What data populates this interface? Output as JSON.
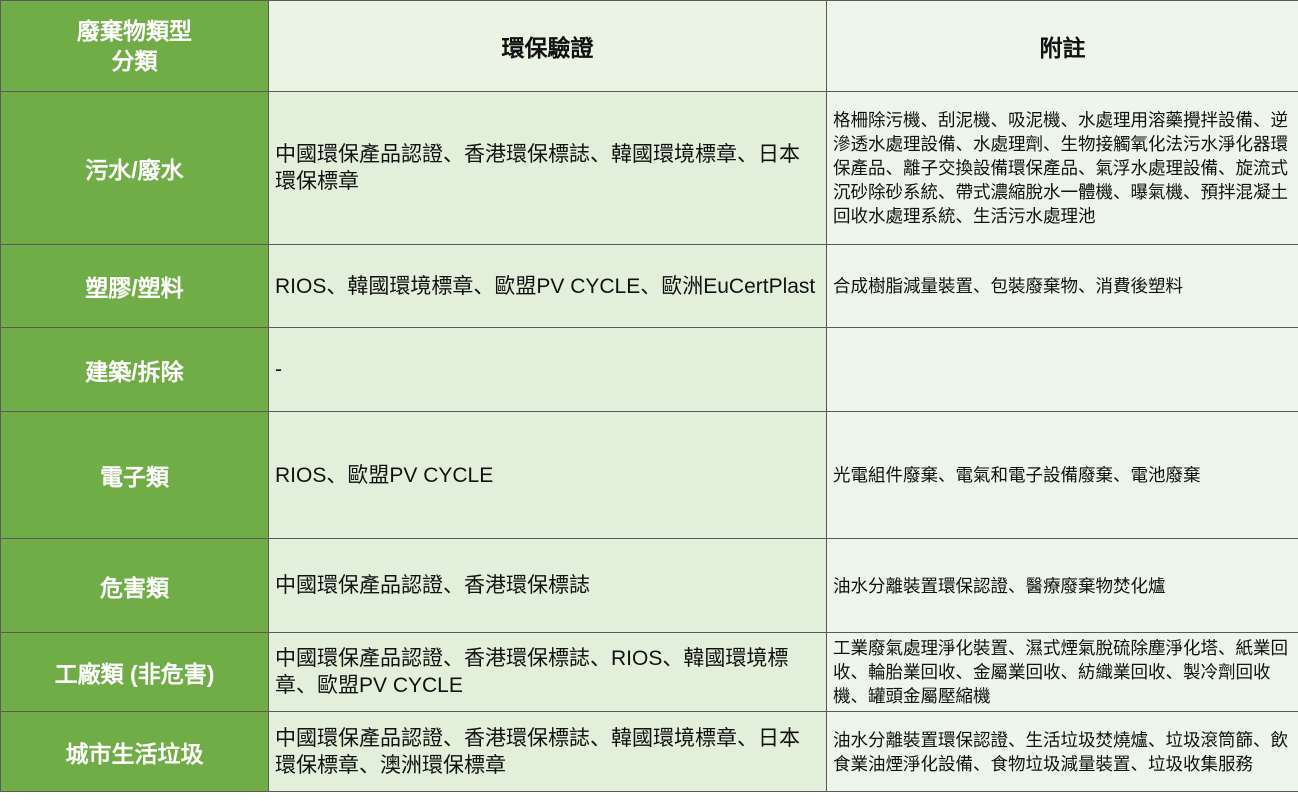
{
  "header": {
    "category_line1": "廢棄物類型",
    "category_line2": "分類",
    "certification": "環保驗證",
    "notes": "附註"
  },
  "rows": [
    {
      "category": "污水/廢水",
      "certification": "中國環保產品認證、香港環保標誌、韓國環境標章、日本環保標章",
      "notes": "格柵除污機、刮泥機、吸泥機、水處理用溶藥攪拌設備、逆滲透水處理設備、水處理劑、生物接觸氧化法污水淨化器環保產品、離子交換設備環保產品、氣浮水處理設備、旋流式沉砂除砂系統、帶式濃縮脫水一體機、曝氣機、預拌混凝土回收水處理系統、生活污水處理池"
    },
    {
      "category": "塑膠/塑料",
      "certification": "RIOS、韓國環境標章、歐盟PV CYCLE、歐洲EuCertPlast",
      "notes": "合成樹脂減量裝置、包裝廢棄物、消費後塑料"
    },
    {
      "category": "建築/拆除",
      "certification": "-",
      "notes": ""
    },
    {
      "category": "電子類",
      "certification": "RIOS、歐盟PV CYCLE",
      "notes": "光電組件廢棄、電氣和電子設備廢棄、電池廢棄"
    },
    {
      "category": "危害類",
      "certification": "中國環保產品認證、香港環保標誌",
      "notes": "油水分離裝置環保認證、醫療廢棄物焚化爐"
    },
    {
      "category": "工廠類 (非危害)",
      "certification": "中國環保產品認證、香港環保標誌、RIOS、韓國環境標章、歐盟PV CYCLE",
      "notes": "工業廢氣處理淨化裝置、濕式煙氣脫硫除塵淨化塔、紙業回收、輪胎業回收、金屬業回收、紡織業回收、製冷劑回收機、罐頭金屬壓縮機"
    },
    {
      "category": "城市生活垃圾",
      "certification": "中國環保產品認證、香港環保標誌、韓國環境標章、日本環保標章、澳洲環保標章",
      "notes": "油水分離裝置環保認證、生活垃圾焚燒爐、垃圾滾筒篩、飲食業油煙淨化設備、食物垃圾減量裝置、垃圾收集服務"
    }
  ]
}
